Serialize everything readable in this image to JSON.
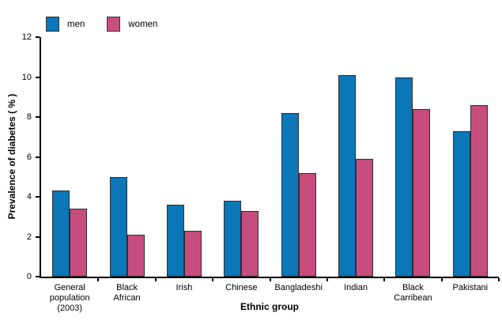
{
  "chart_data": {
    "type": "bar",
    "title": "",
    "xlabel": "Ethnic group",
    "ylabel": "Prevalence of diabetes ( % )",
    "ylim": [
      0,
      12
    ],
    "yticks": [
      0,
      2,
      4,
      6,
      8,
      10,
      12
    ],
    "grid": false,
    "legend_position": "top-left",
    "categories": [
      "General\npopulation\n(2003)",
      "Black\nAfrican",
      "Irish",
      "Chinese",
      "Bangladeshi",
      "Indian",
      "Black\nCarribean",
      "Pakistani"
    ],
    "series": [
      {
        "name": "men",
        "color": "#0b76b8",
        "values": [
          4.3,
          5.0,
          3.6,
          3.8,
          8.2,
          10.1,
          10.0,
          7.3
        ]
      },
      {
        "name": "women",
        "color": "#c74d7e",
        "values": [
          3.4,
          2.1,
          2.3,
          3.3,
          5.2,
          5.9,
          8.4,
          8.6
        ]
      }
    ],
    "bar_border_color": "#2e2e2e",
    "axis_color": "#000000"
  }
}
